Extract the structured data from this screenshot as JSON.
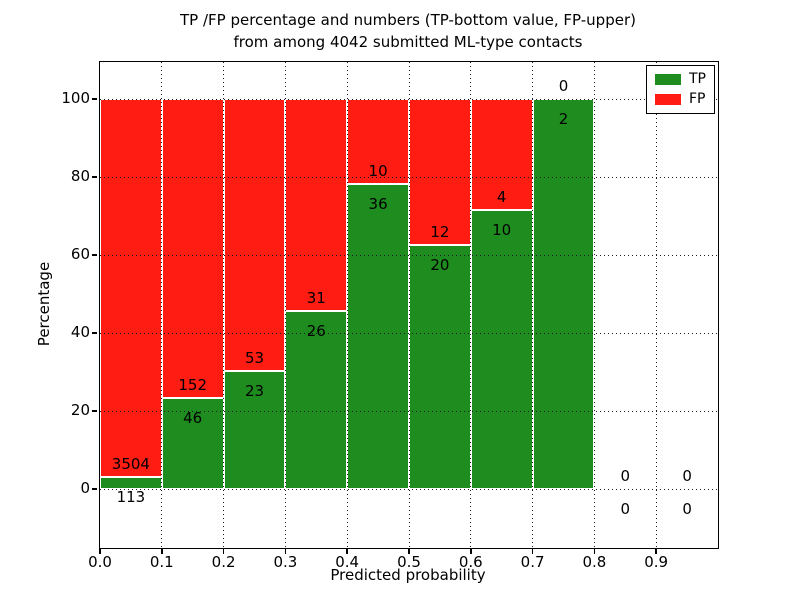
{
  "figure": {
    "title_line1": "TP /FP percentage and numbers (TP-bottom value, FP-upper)",
    "title_line2": "from among 4042 submitted ML-type contacts"
  },
  "axes": {
    "xlabel": "Predicted probability",
    "ylabel": "Percentage",
    "x_tick_labels": [
      "0.0",
      "0.1",
      "0.2",
      "0.3",
      "0.4",
      "0.5",
      "0.6",
      "0.7",
      "0.8",
      "0.9"
    ],
    "x_tick_values": [
      0.0,
      0.1,
      0.2,
      0.3,
      0.4,
      0.5,
      0.6,
      0.7,
      0.8,
      0.9
    ],
    "y_tick_labels": [
      "0",
      "20",
      "40",
      "60",
      "80",
      "100"
    ],
    "y_tick_values": [
      0,
      20,
      40,
      60,
      80,
      100
    ],
    "xlim": [
      0.0,
      1.0
    ],
    "ylim": [
      -15.1,
      109.5
    ],
    "grid_style": "dotted"
  },
  "legend": {
    "position": "upper right",
    "items": [
      {
        "label": "TP",
        "color": "#1e8c1e"
      },
      {
        "label": "FP",
        "color": "#ff1d13"
      }
    ]
  },
  "chart_data": {
    "type": "bar",
    "stacked": true,
    "title": "TP /FP percentage and numbers (TP-bottom value, FP-upper) from among 4042 submitted ML-type contacts",
    "xlabel": "Predicted probability",
    "ylabel": "Percentage",
    "total_contacts": 4042,
    "bin_width": 0.1,
    "bins": [
      {
        "x_start": 0.0,
        "x_end": 0.1,
        "tp_count": 113,
        "fp_count": 3504,
        "tp_percent": 3.12,
        "fp_percent": 96.88
      },
      {
        "x_start": 0.1,
        "x_end": 0.2,
        "tp_count": 46,
        "fp_count": 152,
        "tp_percent": 23.23,
        "fp_percent": 76.77
      },
      {
        "x_start": 0.2,
        "x_end": 0.3,
        "tp_count": 23,
        "fp_count": 53,
        "tp_percent": 30.26,
        "fp_percent": 69.74
      },
      {
        "x_start": 0.3,
        "x_end": 0.4,
        "tp_count": 26,
        "fp_count": 31,
        "tp_percent": 45.61,
        "fp_percent": 54.39
      },
      {
        "x_start": 0.4,
        "x_end": 0.5,
        "tp_count": 36,
        "fp_count": 10,
        "tp_percent": 78.26,
        "fp_percent": 21.74
      },
      {
        "x_start": 0.5,
        "x_end": 0.6,
        "tp_count": 20,
        "fp_count": 12,
        "tp_percent": 62.5,
        "fp_percent": 37.5
      },
      {
        "x_start": 0.6,
        "x_end": 0.7,
        "tp_count": 10,
        "fp_count": 4,
        "tp_percent": 71.43,
        "fp_percent": 28.57
      },
      {
        "x_start": 0.7,
        "x_end": 0.8,
        "tp_count": 2,
        "fp_count": 0,
        "tp_percent": 100.0,
        "fp_percent": 0.0
      },
      {
        "x_start": 0.8,
        "x_end": 0.9,
        "tp_count": 0,
        "fp_count": 0,
        "tp_percent": null,
        "fp_percent": null
      },
      {
        "x_start": 0.9,
        "x_end": 1.0,
        "tp_count": 0,
        "fp_count": 0,
        "tp_percent": null,
        "fp_percent": null
      }
    ]
  },
  "colors": {
    "tp": "#1e8c1e",
    "fp": "#ff1d13",
    "grid": "#1a1a1a",
    "spine": "#000000",
    "bar_edge": "#ffffff",
    "background": "#ffffff"
  }
}
